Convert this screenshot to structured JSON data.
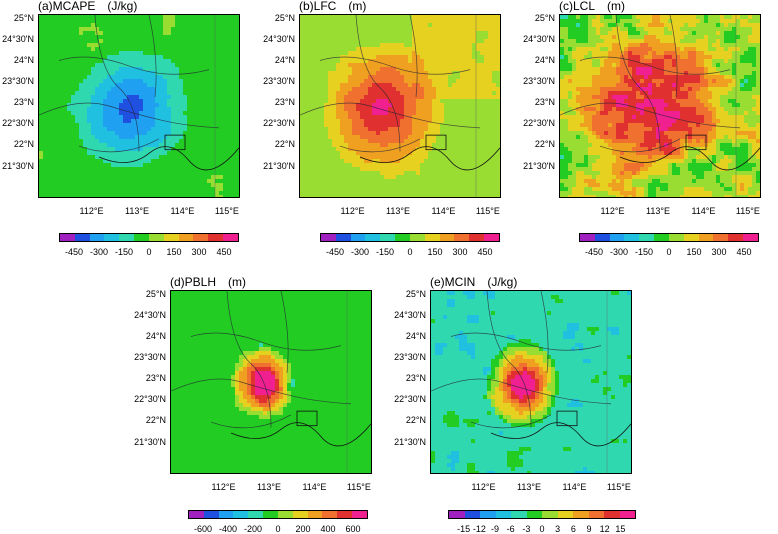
{
  "lat_labels": [
    "25°N",
    "24°30'N",
    "24°N",
    "23°30'N",
    "23°N",
    "22°30'N",
    "22°N",
    "21°30'N"
  ],
  "lon_labels": [
    "112°E",
    "113°E",
    "114°E",
    "115°E"
  ],
  "palette_cape": [
    "#a020c0",
    "#2050e0",
    "#1fa0f0",
    "#20c0e0",
    "#30d8b0",
    "#22cc22",
    "#99dd33",
    "#e6d020",
    "#f0a020",
    "#f07030",
    "#e03030",
    "#f02090"
  ],
  "palette_cin": [
    "#a020c0",
    "#2050e0",
    "#1fa0f0",
    "#20c0e0",
    "#30d8b0",
    "#22cc22",
    "#99dd33",
    "#e6d020",
    "#f0a020",
    "#f07030",
    "#e03030",
    "#f02090"
  ],
  "panels": [
    {
      "key": "a",
      "title": "(a)MCAPE",
      "unit": "(J/kg)",
      "cbar_labels": [
        "-450",
        "-300",
        "-150",
        "0",
        "150",
        "300",
        "450"
      ]
    },
    {
      "key": "b",
      "title": "(b)LFC",
      "unit": "(m)",
      "cbar_labels": [
        "-450",
        "-300",
        "-150",
        "0",
        "150",
        "300",
        "450"
      ]
    },
    {
      "key": "c",
      "title": "(c)LCL",
      "unit": "(m)",
      "cbar_labels": [
        "-450",
        "-300",
        "-150",
        "0",
        "150",
        "300",
        "450"
      ]
    },
    {
      "key": "d",
      "title": "(d)PBLH",
      "unit": "(m)",
      "cbar_labels": [
        "-600",
        "-400",
        "-200",
        "0",
        "200",
        "400",
        "600"
      ]
    },
    {
      "key": "e",
      "title": "(e)MCIN",
      "unit": "(J/kg)",
      "cbar_labels": [
        "-15",
        "-12",
        "-9",
        "-6",
        "-3",
        "0",
        "3",
        "6",
        "9",
        "12",
        "15"
      ]
    }
  ]
}
